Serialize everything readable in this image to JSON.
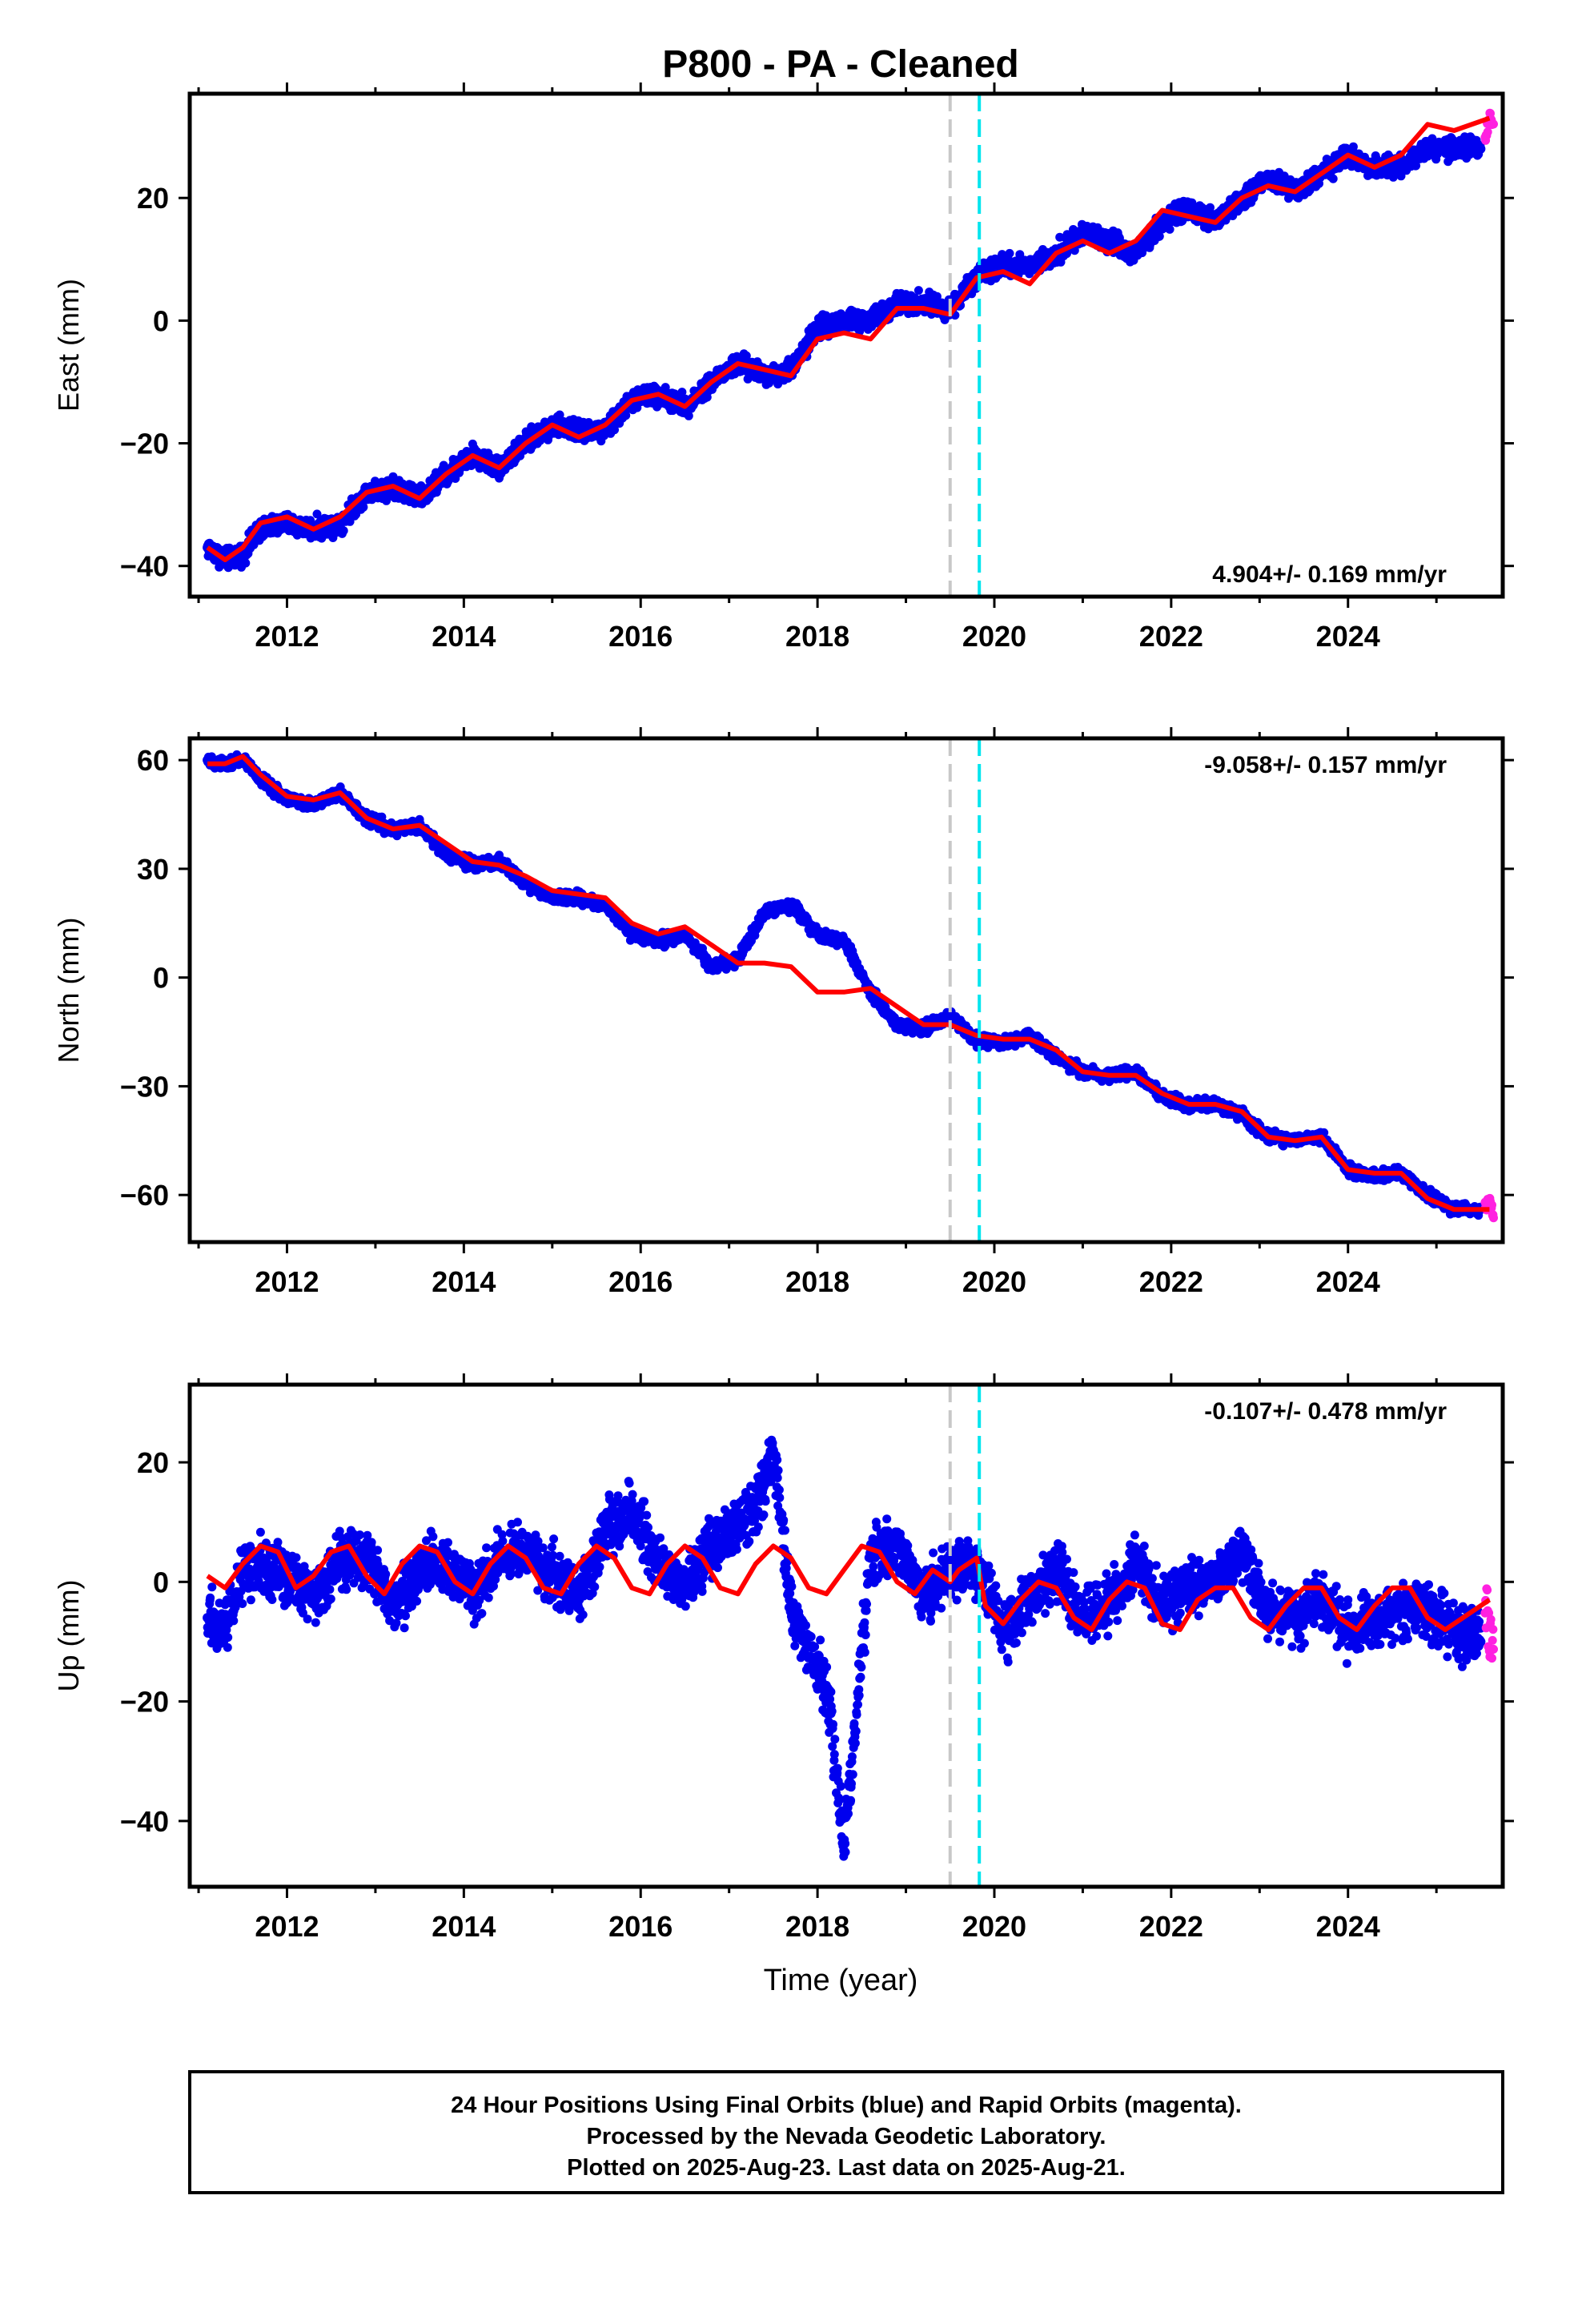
{
  "title": "P800  - PA - Cleaned",
  "xlabel": "Time (year)",
  "footer": {
    "line1": "24 Hour Positions Using Final Orbits (blue) and Rapid Orbits (magenta).",
    "line2": "Processed by the Nevada Geodetic Laboratory.",
    "line3": "Plotted on 2025-Aug-23. Last data on 2025-Aug-21."
  },
  "colors": {
    "final_orbits": "#0000ee",
    "rapid_orbits": "#ff20e0",
    "model": "#ff0000",
    "break_gray": "#c8c8c8",
    "break_cyan": "#00e5ee"
  },
  "chart_data": [
    {
      "type": "scatter",
      "component": "east",
      "ylabel": "East (mm)",
      "rate_text": "4.904+/- 0.169 mm/yr",
      "xlim": [
        2010.9,
        2025.75
      ],
      "ylim": [
        -45,
        37
      ],
      "xticks": [
        2012,
        2014,
        2016,
        2018,
        2020,
        2022,
        2024
      ],
      "yticks": [
        -40,
        -20,
        0,
        20
      ],
      "ytick_labels": [
        "−40",
        "−20",
        "0",
        "20"
      ],
      "breaks": [
        {
          "x": 2019.5,
          "color": "gray"
        },
        {
          "x": 2019.83,
          "color": "cyan"
        }
      ],
      "series": [
        {
          "role": "final_orbits",
          "x": [
            2011.1,
            2011.3,
            2011.5,
            2011.7,
            2012.0,
            2012.3,
            2012.6,
            2012.9,
            2013.2,
            2013.5,
            2013.8,
            2014.1,
            2014.4,
            2014.7,
            2015.0,
            2015.3,
            2015.6,
            2015.9,
            2016.2,
            2016.5,
            2016.8,
            2017.1,
            2017.4,
            2017.7,
            2018.0,
            2018.3,
            2018.6,
            2018.9,
            2019.2,
            2019.5,
            2019.8,
            2020.1,
            2020.4,
            2020.7,
            2021.0,
            2021.3,
            2021.6,
            2021.9,
            2022.2,
            2022.5,
            2022.8,
            2023.1,
            2023.4,
            2023.7,
            2024.0,
            2024.3,
            2024.6,
            2024.9,
            2025.2,
            2025.5
          ],
          "y": [
            -37,
            -39,
            -38,
            -34,
            -33,
            -34,
            -33,
            -28,
            -27,
            -29,
            -25,
            -22,
            -24,
            -20,
            -17,
            -18,
            -18,
            -13,
            -12,
            -14,
            -10,
            -7,
            -9,
            -8,
            -1,
            0,
            0,
            3,
            3,
            2,
            7,
            9,
            9,
            11,
            14,
            13,
            11,
            16,
            18,
            16,
            20,
            23,
            21,
            24,
            27,
            25,
            25,
            28,
            28,
            28
          ]
        },
        {
          "role": "rapid_orbits",
          "x": [
            2025.55,
            2025.6,
            2025.65
          ],
          "y": [
            30,
            33,
            32
          ]
        },
        {
          "role": "model",
          "x": [
            2011.1,
            2011.3,
            2011.5,
            2011.7,
            2012.0,
            2012.3,
            2012.6,
            2012.9,
            2013.2,
            2013.5,
            2013.8,
            2014.1,
            2014.4,
            2014.7,
            2015.0,
            2015.3,
            2015.6,
            2015.9,
            2016.2,
            2016.5,
            2016.8,
            2017.1,
            2017.4,
            2017.7,
            2018.0,
            2018.3,
            2018.6,
            2018.9,
            2019.2,
            2019.5,
            2019.8,
            2020.1,
            2020.4,
            2020.7,
            2021.0,
            2021.3,
            2021.6,
            2021.9,
            2022.2,
            2022.5,
            2022.8,
            2023.1,
            2023.4,
            2023.7,
            2024.0,
            2024.3,
            2024.6,
            2024.9,
            2025.2,
            2025.6
          ],
          "y": [
            -37,
            -39,
            -37,
            -33,
            -32,
            -34,
            -32,
            -28,
            -27,
            -29,
            -25,
            -22,
            -24,
            -20,
            -17,
            -19,
            -17,
            -13,
            -12,
            -14,
            -10,
            -7,
            -8,
            -9,
            -3,
            -2,
            -3,
            2,
            2,
            1,
            7,
            8,
            6,
            11,
            13,
            11,
            13,
            18,
            17,
            16,
            20,
            22,
            21,
            24,
            27,
            25,
            27,
            32,
            31,
            33
          ]
        }
      ]
    },
    {
      "type": "scatter",
      "component": "north",
      "ylabel": "North (mm)",
      "rate_text": "-9.058+/- 0.157 mm/yr",
      "xlim": [
        2010.9,
        2025.75
      ],
      "ylim": [
        -73,
        66
      ],
      "xticks": [
        2012,
        2014,
        2016,
        2018,
        2020,
        2022,
        2024
      ],
      "yticks": [
        -60,
        -30,
        0,
        30,
        60
      ],
      "ytick_labels": [
        "−60",
        "−30",
        "0",
        "30",
        "60"
      ],
      "breaks": [
        {
          "x": 2019.5,
          "color": "gray"
        },
        {
          "x": 2019.83,
          "color": "cyan"
        }
      ],
      "series": [
        {
          "role": "final_orbits",
          "x": [
            2011.1,
            2011.3,
            2011.5,
            2011.7,
            2012.0,
            2012.3,
            2012.6,
            2012.9,
            2013.2,
            2013.5,
            2013.8,
            2014.1,
            2014.4,
            2014.7,
            2015.0,
            2015.3,
            2015.6,
            2015.9,
            2016.2,
            2016.5,
            2016.8,
            2017.1,
            2017.4,
            2017.7,
            2018.0,
            2018.3,
            2018.6,
            2018.9,
            2019.2,
            2019.5,
            2019.8,
            2020.1,
            2020.4,
            2020.7,
            2021.0,
            2021.3,
            2021.6,
            2021.9,
            2022.2,
            2022.5,
            2022.8,
            2023.1,
            2023.4,
            2023.7,
            2024.0,
            2024.3,
            2024.6,
            2024.9,
            2025.2,
            2025.5
          ],
          "y": [
            60,
            59,
            60,
            55,
            49,
            48,
            51,
            44,
            41,
            42,
            34,
            31,
            32,
            26,
            22,
            22,
            20,
            12,
            10,
            12,
            3,
            5,
            18,
            20,
            12,
            10,
            -4,
            -13,
            -14,
            -11,
            -17,
            -18,
            -16,
            -22,
            -26,
            -27,
            -26,
            -33,
            -35,
            -35,
            -38,
            -44,
            -45,
            -44,
            -53,
            -55,
            -54,
            -60,
            -64,
            -64
          ]
        },
        {
          "role": "rapid_orbits",
          "x": [
            2025.55,
            2025.6,
            2025.65
          ],
          "y": [
            -63,
            -62,
            -65
          ]
        },
        {
          "role": "model",
          "x": [
            2011.1,
            2011.3,
            2011.5,
            2011.7,
            2012.0,
            2012.3,
            2012.6,
            2012.9,
            2013.2,
            2013.5,
            2013.8,
            2014.1,
            2014.4,
            2014.7,
            2015.0,
            2015.3,
            2015.6,
            2015.9,
            2016.2,
            2016.5,
            2016.8,
            2017.1,
            2017.4,
            2017.7,
            2018.0,
            2018.3,
            2018.6,
            2018.9,
            2019.2,
            2019.5,
            2019.8,
            2020.1,
            2020.4,
            2020.7,
            2021.0,
            2021.3,
            2021.6,
            2021.9,
            2022.2,
            2022.5,
            2022.8,
            2023.1,
            2023.4,
            2023.7,
            2024.0,
            2024.3,
            2024.6,
            2024.9,
            2025.2,
            2025.6
          ],
          "y": [
            59,
            59,
            61,
            56,
            50,
            49,
            51,
            44,
            41,
            42,
            37,
            32,
            31,
            28,
            24,
            23,
            22,
            15,
            12,
            14,
            9,
            4,
            4,
            3,
            -4,
            -4,
            -3,
            -8,
            -13,
            -13,
            -16,
            -17,
            -17,
            -20,
            -26,
            -27,
            -27,
            -32,
            -35,
            -35,
            -37,
            -44,
            -45,
            -44,
            -53,
            -54,
            -54,
            -61,
            -64,
            -64
          ]
        }
      ]
    },
    {
      "type": "scatter",
      "component": "up",
      "ylabel": "Up (mm)",
      "rate_text": "-0.107+/- 0.478 mm/yr",
      "xlim": [
        2010.9,
        2025.75
      ],
      "ylim": [
        -51,
        33
      ],
      "xticks": [
        2012,
        2014,
        2016,
        2018,
        2020,
        2022,
        2024
      ],
      "yticks": [
        -40,
        -20,
        0,
        20
      ],
      "ytick_labels": [
        "−40",
        "−20",
        "0",
        "20"
      ],
      "breaks": [
        {
          "x": 2019.5,
          "color": "gray"
        },
        {
          "x": 2019.83,
          "color": "cyan"
        }
      ],
      "series": [
        {
          "role": "final_orbits",
          "x": [
            2011.1,
            2011.3,
            2011.5,
            2011.7,
            2012.0,
            2012.3,
            2012.6,
            2012.9,
            2013.2,
            2013.5,
            2013.8,
            2014.1,
            2014.4,
            2014.7,
            2015.0,
            2015.3,
            2015.6,
            2015.9,
            2016.2,
            2016.5,
            2016.8,
            2017.1,
            2017.3,
            2017.5,
            2017.7,
            2017.85,
            2018.0,
            2018.15,
            2018.3,
            2018.6,
            2018.9,
            2019.2,
            2019.5,
            2019.8,
            2020.1,
            2020.4,
            2020.7,
            2021.0,
            2021.3,
            2021.6,
            2021.9,
            2022.2,
            2022.5,
            2022.8,
            2023.1,
            2023.4,
            2023.7,
            2024.0,
            2024.3,
            2024.6,
            2024.9,
            2025.2,
            2025.5
          ],
          "y": [
            -6,
            -8,
            2,
            3,
            1,
            -2,
            3,
            5,
            -4,
            2,
            3,
            -2,
            4,
            5,
            1,
            -2,
            8,
            12,
            3,
            -1,
            6,
            10,
            12,
            22,
            -5,
            -10,
            -14,
            -22,
            -45,
            4,
            6,
            -3,
            2,
            3,
            -8,
            -3,
            2,
            -6,
            -4,
            3,
            -4,
            -1,
            1,
            5,
            -5,
            -6,
            -2,
            -8,
            -7,
            -5,
            -4,
            -8,
            -10
          ]
        },
        {
          "role": "rapid_orbits",
          "x": [
            2025.55,
            2025.6,
            2025.65
          ],
          "y": [
            -2,
            -8,
            -12
          ]
        },
        {
          "role": "model",
          "x": [
            2011.1,
            2011.3,
            2011.5,
            2011.7,
            2011.9,
            2012.1,
            2012.3,
            2012.5,
            2012.7,
            2012.9,
            2013.1,
            2013.3,
            2013.5,
            2013.7,
            2013.9,
            2014.1,
            2014.3,
            2014.5,
            2014.7,
            2014.9,
            2015.1,
            2015.3,
            2015.5,
            2015.7,
            2015.9,
            2016.1,
            2016.3,
            2016.5,
            2016.7,
            2016.9,
            2017.1,
            2017.3,
            2017.5,
            2017.7,
            2017.9,
            2018.1,
            2018.3,
            2018.5,
            2018.7,
            2018.9,
            2019.1,
            2019.3,
            2019.5,
            2019.6,
            2019.8,
            2019.9,
            2020.1,
            2020.3,
            2020.5,
            2020.7,
            2020.9,
            2021.1,
            2021.3,
            2021.5,
            2021.7,
            2021.9,
            2022.1,
            2022.3,
            2022.5,
            2022.7,
            2022.9,
            2023.1,
            2023.3,
            2023.5,
            2023.7,
            2023.9,
            2024.1,
            2024.3,
            2024.5,
            2024.7,
            2024.9,
            2025.1,
            2025.3,
            2025.6
          ],
          "y": [
            1,
            -1,
            3,
            6,
            5,
            -1,
            1,
            5,
            6,
            1,
            -2,
            3,
            6,
            5,
            0,
            -2,
            3,
            6,
            4,
            -1,
            -2,
            3,
            6,
            4,
            -1,
            -2,
            3,
            6,
            4,
            -1,
            -2,
            3,
            6,
            4,
            -1,
            -2,
            2,
            6,
            5,
            0,
            -2,
            2,
            0,
            2,
            4,
            -4,
            -7,
            -3,
            0,
            -1,
            -6,
            -8,
            -3,
            0,
            -1,
            -7,
            -8,
            -3,
            -1,
            -1,
            -6,
            -8,
            -4,
            -1,
            -1,
            -6,
            -8,
            -4,
            -1,
            -1,
            -6,
            -8,
            -6,
            -3
          ]
        }
      ]
    }
  ]
}
